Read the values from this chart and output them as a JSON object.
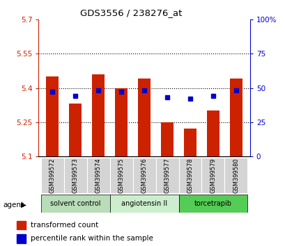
{
  "title": "GDS3556 / 238276_at",
  "samples": [
    "GSM399572",
    "GSM399573",
    "GSM399574",
    "GSM399575",
    "GSM399576",
    "GSM399577",
    "GSM399578",
    "GSM399579",
    "GSM399580"
  ],
  "transformed_count": [
    5.45,
    5.33,
    5.46,
    5.4,
    5.44,
    5.25,
    5.22,
    5.3,
    5.44
  ],
  "percentile_rank": [
    47,
    44,
    48,
    47,
    48,
    43,
    42,
    44,
    48
  ],
  "ylim_left": [
    5.1,
    5.7
  ],
  "yticks_left": [
    5.1,
    5.25,
    5.4,
    5.55,
    5.7
  ],
  "ytick_labels_left": [
    "5.1",
    "5.25",
    "5.4",
    "5.55",
    "5.7"
  ],
  "ylim_right": [
    0,
    100
  ],
  "yticks_right": [
    0,
    25,
    50,
    75,
    100
  ],
  "ytick_labels_right": [
    "0",
    "25",
    "50",
    "75",
    "100%"
  ],
  "bar_color": "#cc2200",
  "dot_color": "#0000cc",
  "legend_tc": "transformed count",
  "legend_pr": "percentile rank within the sample",
  "group_data": [
    {
      "start": 0,
      "end": 2,
      "label": "solvent control",
      "color": "#b8ddb8"
    },
    {
      "start": 3,
      "end": 5,
      "label": "angiotensin II",
      "color": "#cceecc"
    },
    {
      "start": 6,
      "end": 8,
      "label": "torcetrapib",
      "color": "#55cc55"
    }
  ]
}
